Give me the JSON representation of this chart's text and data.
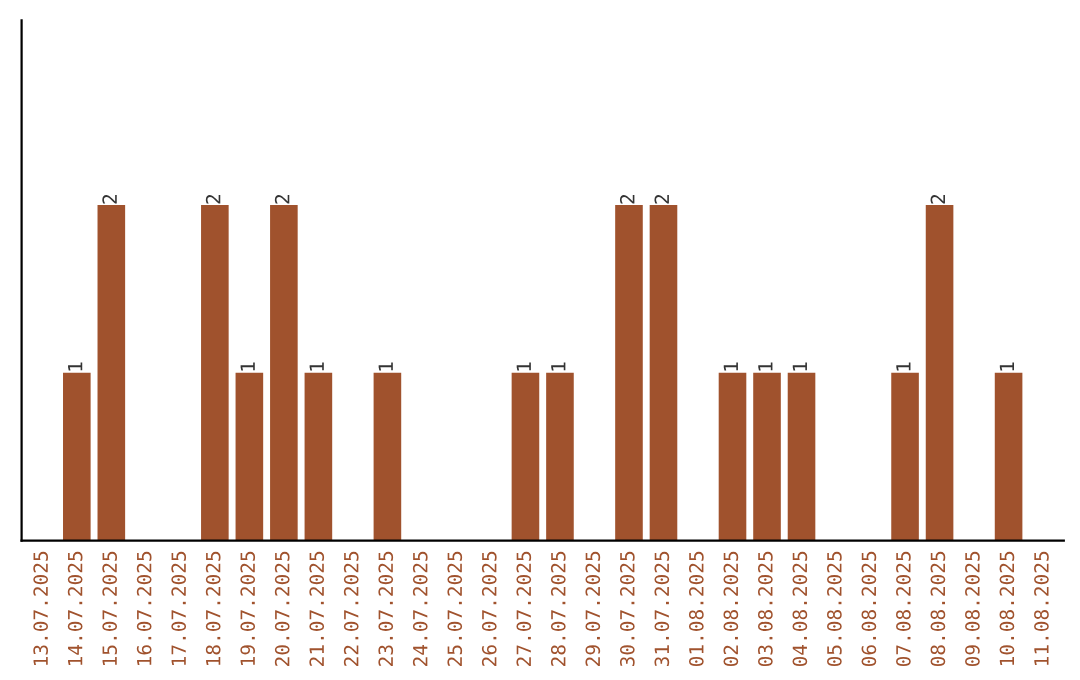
{
  "chart_data": {
    "type": "bar",
    "categories": [
      "13.07.2025",
      "14.07.2025",
      "15.07.2025",
      "16.07.2025",
      "17.07.2025",
      "18.07.2025",
      "19.07.2025",
      "20.07.2025",
      "21.07.2025",
      "22.07.2025",
      "23.07.2025",
      "24.07.2025",
      "25.07.2025",
      "26.07.2025",
      "27.07.2025",
      "28.07.2025",
      "29.07.2025",
      "30.07.2025",
      "31.07.2025",
      "01.08.2025",
      "02.08.2025",
      "03.08.2025",
      "04.08.2025",
      "05.08.2025",
      "06.08.2025",
      "07.08.2025",
      "08.08.2025",
      "09.08.2025",
      "10.08.2025",
      "11.08.2025"
    ],
    "values": [
      0,
      1,
      2,
      0,
      0,
      2,
      1,
      2,
      1,
      0,
      1,
      0,
      0,
      0,
      1,
      1,
      0,
      2,
      2,
      0,
      1,
      1,
      1,
      0,
      0,
      1,
      2,
      0,
      1,
      0
    ],
    "value_labels": [
      null,
      "1",
      "2",
      null,
      null,
      "2",
      "1",
      "2",
      "1",
      null,
      "1",
      null,
      null,
      null,
      "1",
      "1",
      null,
      "2",
      "2",
      null,
      "1",
      "1",
      "1",
      null,
      null,
      "1",
      "2",
      null,
      "1",
      null
    ],
    "color": "#a0522d",
    "grid": false,
    "legend": false,
    "tick_labels": "x"
  }
}
